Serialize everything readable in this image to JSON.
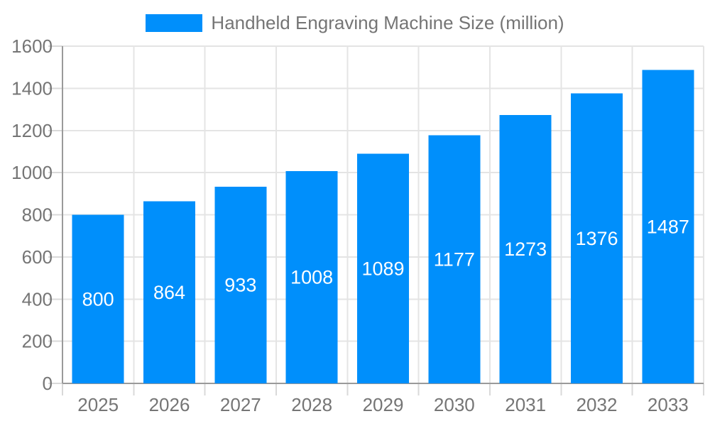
{
  "chart_data": {
    "type": "bar",
    "title": "Handheld Engraving Machine Size (million)",
    "legend": {
      "position": "top",
      "label": "Handheld Engraving Machine Size (million)"
    },
    "categories": [
      "2025",
      "2026",
      "2027",
      "2028",
      "2029",
      "2030",
      "2031",
      "2032",
      "2033"
    ],
    "values": [
      800,
      864,
      933,
      1008,
      1089,
      1177,
      1273,
      1376,
      1487
    ],
    "xlabel": "",
    "ylabel": "",
    "ylim": [
      0,
      1600
    ],
    "y_tick_step": 200,
    "y_tick_labels": [
      "0",
      "200",
      "400",
      "600",
      "800",
      "1000",
      "1200",
      "1400",
      "1600"
    ],
    "grid": true,
    "colors": {
      "bar": "#008FFB",
      "value_label_text": "#ffffff",
      "axis_text": "#757575",
      "grid_line": "#e4e4e4",
      "tick_line": "#d9d9d9",
      "axis_line": "#9a9a9a",
      "background": "#ffffff"
    }
  }
}
